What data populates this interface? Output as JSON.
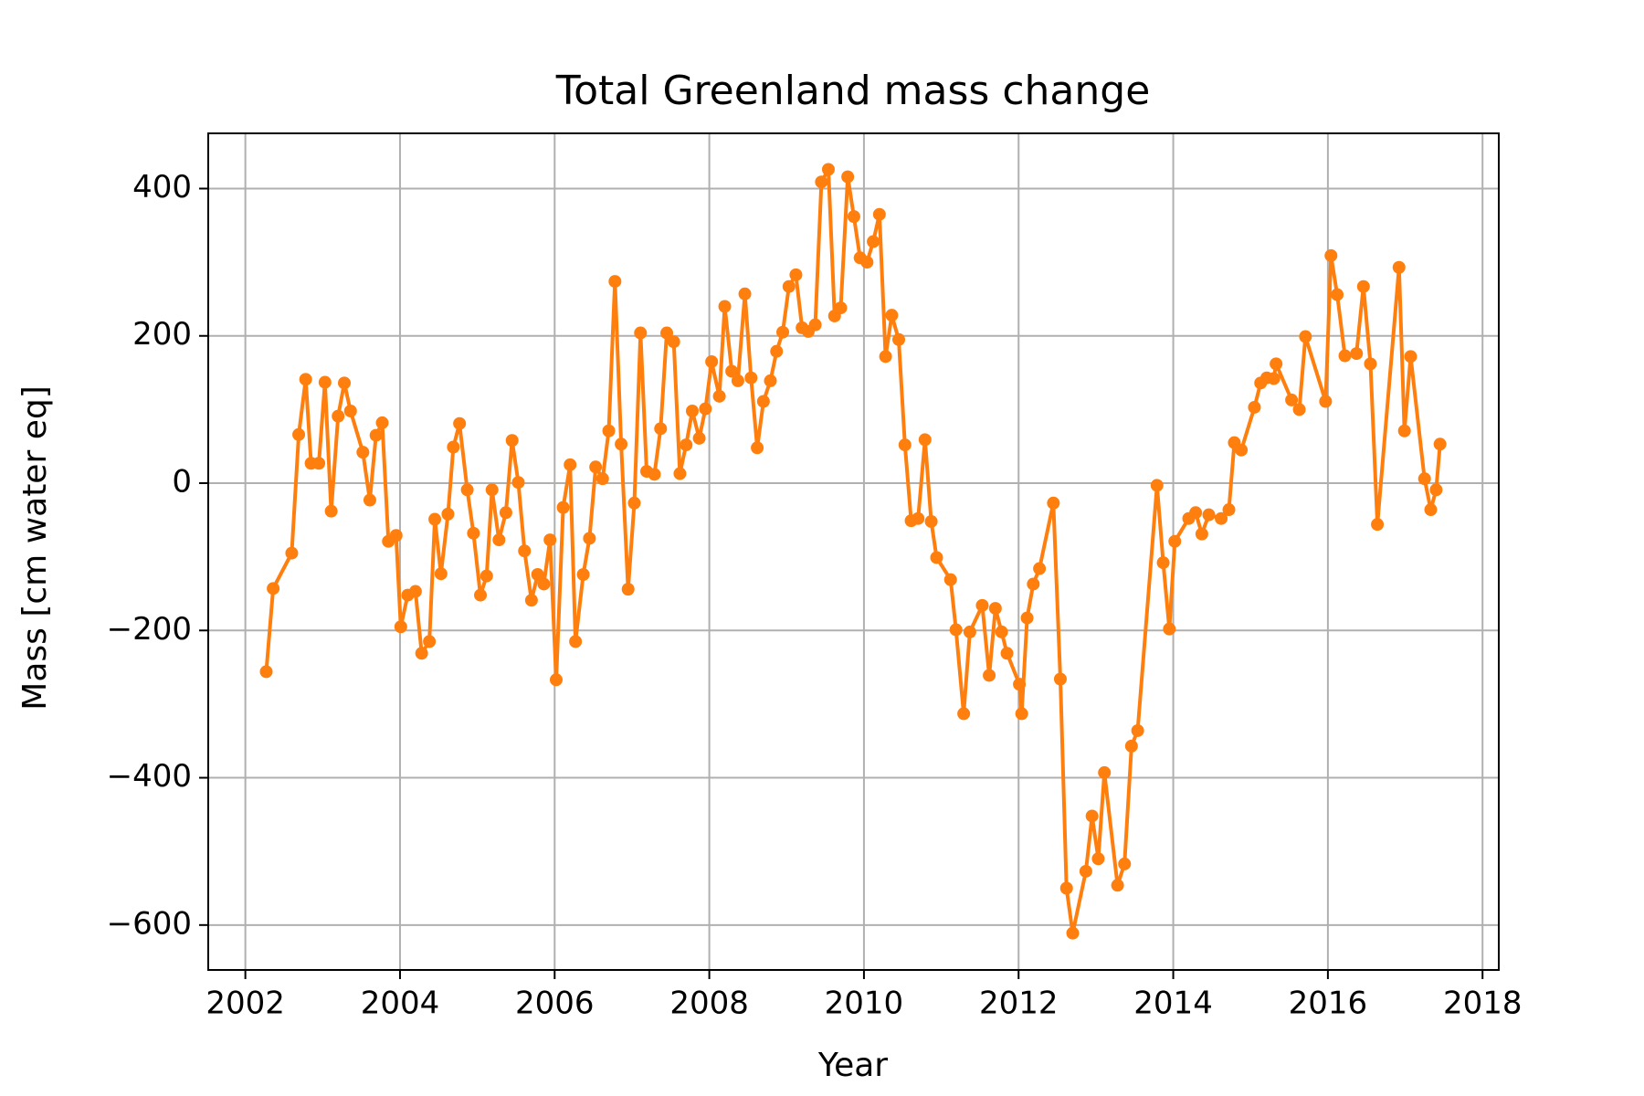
{
  "chart_data": {
    "type": "line",
    "title": "Total Greenland mass change",
    "xlabel": "Year",
    "ylabel": "Mass [cm water eq]",
    "xlim": [
      2001.52,
      2018.21
    ],
    "ylim": [
      -661,
      475
    ],
    "xticks": [
      2002,
      2004,
      2006,
      2008,
      2010,
      2012,
      2014,
      2016,
      2018
    ],
    "yticks": [
      {
        "value": -600,
        "label": "−600"
      },
      {
        "value": -400,
        "label": "−400"
      },
      {
        "value": -200,
        "label": "−200"
      },
      0,
      200,
      400
    ],
    "grid": true,
    "series": [
      {
        "color": "#ff7f0e",
        "x": [
          2002.27,
          2002.36,
          2002.6,
          2002.69,
          2002.78,
          2002.85,
          2002.95,
          2003.03,
          2003.11,
          2003.2,
          2003.28,
          2003.36,
          2003.52,
          2003.61,
          2003.69,
          2003.77,
          2003.85,
          2003.95,
          2004.01,
          2004.1,
          2004.2,
          2004.28,
          2004.38,
          2004.45,
          2004.53,
          2004.62,
          2004.69,
          2004.77,
          2004.87,
          2004.95,
          2005.04,
          2005.12,
          2005.19,
          2005.28,
          2005.37,
          2005.45,
          2005.53,
          2005.61,
          2005.7,
          2005.78,
          2005.86,
          2005.94,
          2006.02,
          2006.11,
          2006.2,
          2006.27,
          2006.37,
          2006.45,
          2006.53,
          2006.62,
          2006.7,
          2006.78,
          2006.86,
          2006.95,
          2007.03,
          2007.11,
          2007.19,
          2007.29,
          2007.37,
          2007.45,
          2007.54,
          2007.62,
          2007.7,
          2007.78,
          2007.87,
          2007.95,
          2008.03,
          2008.13,
          2008.2,
          2008.29,
          2008.37,
          2008.46,
          2008.54,
          2008.62,
          2008.7,
          2008.79,
          2008.87,
          2008.95,
          2009.03,
          2009.12,
          2009.2,
          2009.28,
          2009.37,
          2009.45,
          2009.54,
          2009.62,
          2009.7,
          2009.79,
          2009.87,
          2009.95,
          2010.04,
          2010.12,
          2010.2,
          2010.28,
          2010.36,
          2010.45,
          2010.53,
          2010.61,
          2010.7,
          2010.79,
          2010.87,
          2010.94,
          2011.12,
          2011.19,
          2011.29,
          2011.37,
          2011.53,
          2011.62,
          2011.7,
          2011.78,
          2011.85,
          2012.01,
          2012.04,
          2012.11,
          2012.19,
          2012.27,
          2012.45,
          2012.54,
          2012.62,
          2012.7,
          2012.87,
          2012.95,
          2013.03,
          2013.11,
          2013.28,
          2013.37,
          2013.46,
          2013.54,
          2013.79,
          2013.87,
          2013.95,
          2014.02,
          2014.2,
          2014.29,
          2014.37,
          2014.46,
          2014.62,
          2014.72,
          2014.79,
          2014.88,
          2015.05,
          2015.13,
          2015.21,
          2015.3,
          2015.33,
          2015.53,
          2015.63,
          2015.71,
          2015.97,
          2016.04,
          2016.12,
          2016.22,
          2016.37,
          2016.46,
          2016.55,
          2016.64,
          2016.92,
          2016.99,
          2017.07,
          2017.25,
          2017.33,
          2017.4,
          2017.45
        ],
        "values": [
          -256,
          -143,
          -95,
          66,
          141,
          27,
          27,
          137,
          -38,
          91,
          136,
          98,
          42,
          -23,
          65,
          82,
          -79,
          -71,
          -195,
          -152,
          -147,
          -231,
          -215,
          -49,
          -123,
          -42,
          49,
          81,
          -9,
          -68,
          -152,
          -126,
          -9,
          -77,
          -40,
          58,
          1,
          -92,
          -159,
          -124,
          -137,
          -77,
          -267,
          -33,
          25,
          -215,
          -124,
          -75,
          22,
          6,
          71,
          274,
          53,
          -144,
          -27,
          204,
          16,
          12,
          74,
          204,
          192,
          13,
          52,
          98,
          61,
          101,
          165,
          118,
          240,
          152,
          139,
          257,
          143,
          48,
          111,
          139,
          179,
          205,
          267,
          283,
          211,
          206,
          215,
          409,
          426,
          227,
          238,
          416,
          362,
          306,
          300,
          328,
          365,
          172,
          228,
          195,
          52,
          -51,
          -48,
          59,
          -52,
          -101,
          -131,
          -199,
          -313,
          -202,
          -166,
          -261,
          -170,
          -202,
          -231,
          -273,
          -313,
          -183,
          -137,
          -116,
          -27,
          -266,
          -550,
          -611,
          -527,
          -452,
          -510,
          -393,
          -546,
          -517,
          -357,
          -336,
          -3,
          -108,
          -198,
          -79,
          -48,
          -40,
          -69,
          -43,
          -48,
          -36,
          55,
          45,
          103,
          136,
          143,
          142,
          162,
          113,
          100,
          199,
          111,
          309,
          256,
          173,
          176,
          267,
          162,
          -56,
          293,
          71,
          172,
          6,
          -36,
          -9,
          53
        ]
      }
    ]
  }
}
